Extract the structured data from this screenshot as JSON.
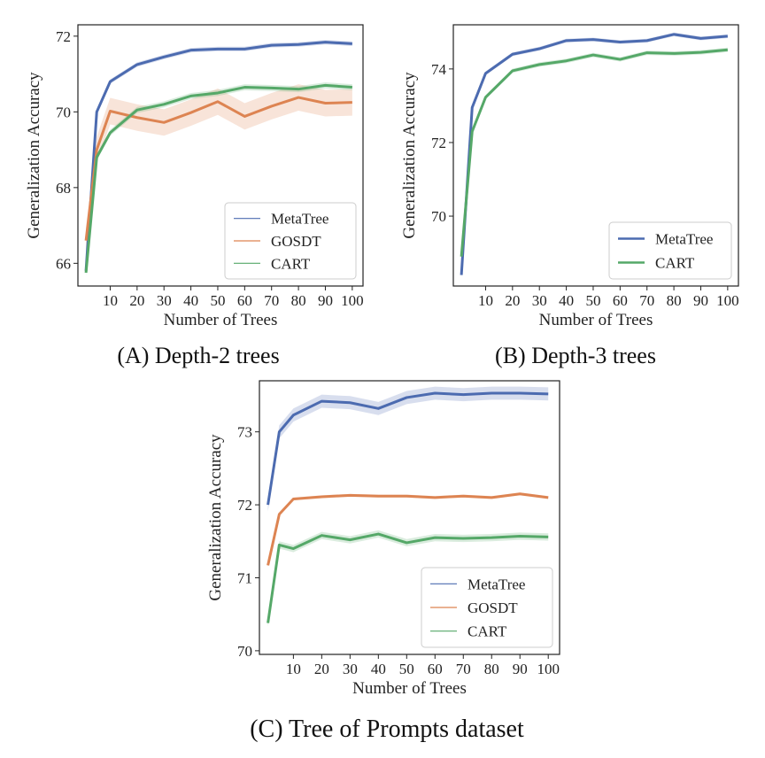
{
  "captions": {
    "a": "(A) Depth-2 trees",
    "b": "(B) Depth-3 trees",
    "c": "(C) Tree of Prompts dataset"
  },
  "colors": {
    "MetaTree": "#4c6bb0",
    "GOSDT": "#dd8452",
    "CART": "#55a868"
  },
  "chart_data": [
    {
      "id": "a",
      "type": "line",
      "xlabel": "Number of Trees",
      "ylabel": "Generalization Accuracy",
      "xlim": [
        -2,
        104
      ],
      "ylim": [
        65.4,
        72.3
      ],
      "xticks": [
        10,
        20,
        30,
        40,
        50,
        60,
        70,
        80,
        90,
        100
      ],
      "yticks": [
        66,
        68,
        70,
        72
      ],
      "legend": "lower-right",
      "x": [
        1,
        5,
        10,
        20,
        30,
        40,
        50,
        60,
        70,
        80,
        90,
        100
      ],
      "series": [
        {
          "name": "MetaTree",
          "values": [
            65.8,
            70.0,
            70.8,
            71.25,
            71.45,
            71.63,
            71.66,
            71.66,
            71.76,
            71.78,
            71.84,
            71.8
          ],
          "band": 0.06,
          "legend_width": 1.2
        },
        {
          "name": "GOSDT",
          "values": [
            66.6,
            69.0,
            70.02,
            69.85,
            69.72,
            69.98,
            70.27,
            69.88,
            70.15,
            70.38,
            70.23,
            70.25
          ],
          "band": 0.35,
          "legend_width": 1.2
        },
        {
          "name": "CART",
          "values": [
            65.75,
            68.8,
            69.45,
            70.05,
            70.2,
            70.42,
            70.5,
            70.65,
            70.63,
            70.6,
            70.7,
            70.65
          ],
          "band": 0.08,
          "legend_width": 1.2
        }
      ]
    },
    {
      "id": "b",
      "type": "line",
      "xlabel": "Number of Trees",
      "ylabel": "Generalization Accuracy",
      "xlim": [
        -2,
        104
      ],
      "ylim": [
        68.1,
        75.2
      ],
      "xticks": [
        10,
        20,
        30,
        40,
        50,
        60,
        70,
        80,
        90,
        100
      ],
      "yticks": [
        70,
        72,
        74
      ],
      "legend": "lower-right",
      "x": [
        1,
        5,
        10,
        20,
        30,
        40,
        50,
        60,
        70,
        80,
        90,
        100
      ],
      "series": [
        {
          "name": "MetaTree",
          "values": [
            68.4,
            72.95,
            73.88,
            74.4,
            74.55,
            74.77,
            74.8,
            74.73,
            74.77,
            74.94,
            74.83,
            74.89
          ],
          "band": 0.05,
          "legend_width": 2.6
        },
        {
          "name": "CART",
          "values": [
            68.9,
            72.3,
            73.23,
            73.95,
            74.12,
            74.22,
            74.38,
            74.26,
            74.44,
            74.42,
            74.45,
            74.52
          ],
          "band": 0.06,
          "legend_width": 2.6
        }
      ]
    },
    {
      "id": "c",
      "type": "line",
      "xlabel": "Number of Trees",
      "ylabel": "Generalization Accuracy",
      "xlim": [
        -2,
        104
      ],
      "ylim": [
        69.95,
        73.7
      ],
      "xticks": [
        10,
        20,
        30,
        40,
        50,
        60,
        70,
        80,
        90,
        100
      ],
      "yticks": [
        70,
        71,
        72,
        73
      ],
      "legend": "lower-right",
      "x": [
        1,
        5,
        10,
        20,
        30,
        40,
        50,
        60,
        70,
        80,
        90,
        100
      ],
      "series": [
        {
          "name": "MetaTree",
          "values": [
            72.0,
            73.0,
            73.23,
            73.42,
            73.4,
            73.32,
            73.47,
            73.53,
            73.51,
            73.53,
            73.53,
            73.52
          ],
          "band": 0.09,
          "legend_width": 1.2
        },
        {
          "name": "GOSDT",
          "values": [
            71.17,
            71.87,
            72.08,
            72.11,
            72.13,
            72.12,
            72.12,
            72.1,
            72.12,
            72.1,
            72.15,
            72.1
          ],
          "band": 0.02,
          "legend_width": 1.2
        },
        {
          "name": "CART",
          "values": [
            70.38,
            71.45,
            71.4,
            71.58,
            71.52,
            71.6,
            71.48,
            71.55,
            71.54,
            71.55,
            71.57,
            71.56
          ],
          "band": 0.05,
          "legend_width": 1.2
        }
      ]
    }
  ]
}
